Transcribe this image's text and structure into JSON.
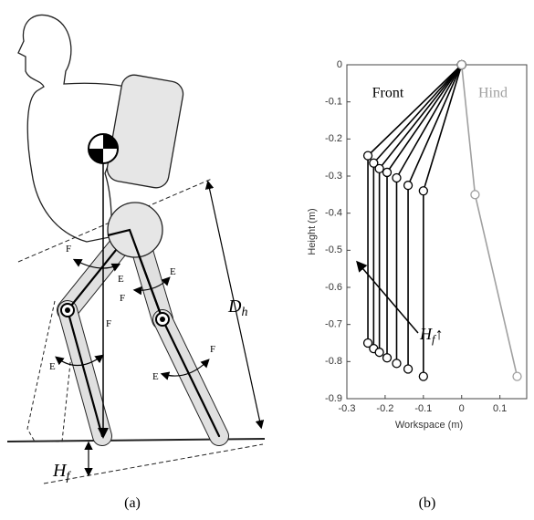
{
  "figure_a": {
    "labels": [
      "F",
      "E",
      "F",
      "E",
      "F",
      "E",
      "F",
      "E"
    ],
    "dh_symbol": "D",
    "dh_subscript": "h",
    "hf_symbol": "H",
    "hf_subscript": "f",
    "caption": "(a)"
  },
  "chart_data": {
    "type": "line",
    "caption": "(b)",
    "xlabel": "Workspace (m)",
    "ylabel": "Height (m)",
    "annotation": "H",
    "annotation_subscript": "f",
    "annotation_arrow": "↑",
    "xlim": [
      -0.3,
      0.17
    ],
    "xticks": [
      -0.3,
      -0.2,
      -0.1,
      0,
      0.1
    ],
    "ylim": [
      -0.9,
      0
    ],
    "yticks": [
      0,
      -0.1,
      -0.2,
      -0.3,
      -0.4,
      -0.5,
      -0.6,
      -0.7,
      -0.8,
      -0.9
    ],
    "series": [
      {
        "name": "Front",
        "color": "#000000",
        "lines": [
          {
            "x": [
              0,
              -0.245,
              -0.245
            ],
            "y": [
              0,
              -0.245,
              -0.75
            ]
          },
          {
            "x": [
              0,
              -0.23,
              -0.23
            ],
            "y": [
              0,
              -0.265,
              -0.765
            ]
          },
          {
            "x": [
              0,
              -0.215,
              -0.215
            ],
            "y": [
              0,
              -0.28,
              -0.775
            ]
          },
          {
            "x": [
              0,
              -0.195,
              -0.195
            ],
            "y": [
              0,
              -0.29,
              -0.79
            ]
          },
          {
            "x": [
              0,
              -0.17,
              -0.17
            ],
            "y": [
              0,
              -0.305,
              -0.805
            ]
          },
          {
            "x": [
              0,
              -0.14,
              -0.14
            ],
            "y": [
              0,
              -0.325,
              -0.82
            ]
          },
          {
            "x": [
              0,
              -0.1,
              -0.1
            ],
            "y": [
              0,
              -0.34,
              -0.84
            ]
          }
        ]
      },
      {
        "name": "Hind",
        "color": "#a0a0a0",
        "lines": [
          {
            "x": [
              0,
              0.035,
              0.145
            ],
            "y": [
              0,
              -0.35,
              -0.84
            ]
          }
        ]
      }
    ]
  }
}
